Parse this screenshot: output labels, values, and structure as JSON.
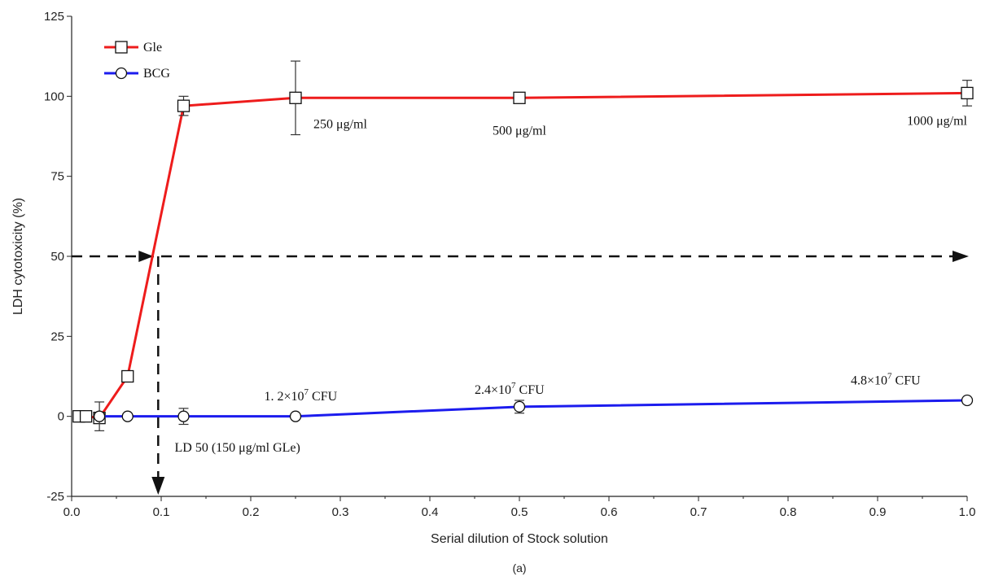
{
  "chart_data": {
    "type": "line",
    "xlabel": "Serial dilution of Stock solution",
    "ylabel": "LDH cytotoxicity (%)",
    "caption": "(a)",
    "xlim": [
      0.0,
      1.0
    ],
    "ylim": [
      -25,
      125
    ],
    "xticks": [
      "0.0",
      "0.1",
      "0.2",
      "0.3",
      "0.4",
      "0.5",
      "0.6",
      "0.7",
      "0.8",
      "0.9",
      "1.0"
    ],
    "yticks": [
      "-25",
      "0",
      "25",
      "50",
      "75",
      "100",
      "125"
    ],
    "legend_position": "top-left",
    "grid": false,
    "series": [
      {
        "name": "Gle",
        "color": "#ee1c1c",
        "marker": "square",
        "x": [
          0.008,
          0.016,
          0.031,
          0.0625,
          0.125,
          0.25,
          0.5,
          1.0
        ],
        "y": [
          0,
          0,
          -0.5,
          12.5,
          97,
          99.5,
          99.5,
          101
        ],
        "err": [
          0,
          0,
          0,
          0,
          3,
          11.5,
          1,
          4
        ]
      },
      {
        "name": "BCG",
        "color": "#1c1cee",
        "marker": "circle",
        "x": [
          0.031,
          0.0625,
          0.125,
          0.25,
          0.5,
          1.0
        ],
        "y": [
          0,
          0,
          0,
          0,
          3,
          5
        ],
        "err": [
          4.5,
          0,
          2.5,
          0,
          2,
          0
        ]
      }
    ],
    "threshold_line": {
      "y": 50,
      "x_intersect": 0.093
    },
    "annotations": [
      {
        "text": "250 μg/ml",
        "x": 0.27,
        "y": 90,
        "anchor": "start"
      },
      {
        "text": "500 μg/ml",
        "x": 0.5,
        "y": 88,
        "anchor": "middle"
      },
      {
        "text": "1000 μg/ml",
        "x": 1.0,
        "y": 91,
        "anchor": "end"
      },
      {
        "text": "LD 50 (150 μg/ml GLe)",
        "x": 0.115,
        "y": -11,
        "anchor": "start"
      },
      {
        "mantissa": "1. 2×10",
        "exp": "7",
        "unit": " CFU",
        "x": 0.215,
        "y": 5,
        "anchor": "start"
      },
      {
        "mantissa": "2.4×10",
        "exp": "7",
        "unit": " CFU",
        "x": 0.45,
        "y": 7,
        "anchor": "start"
      },
      {
        "mantissa": "4.8×10",
        "exp": "7",
        "unit": " CFU",
        "x": 0.87,
        "y": 10,
        "anchor": "start"
      }
    ]
  }
}
